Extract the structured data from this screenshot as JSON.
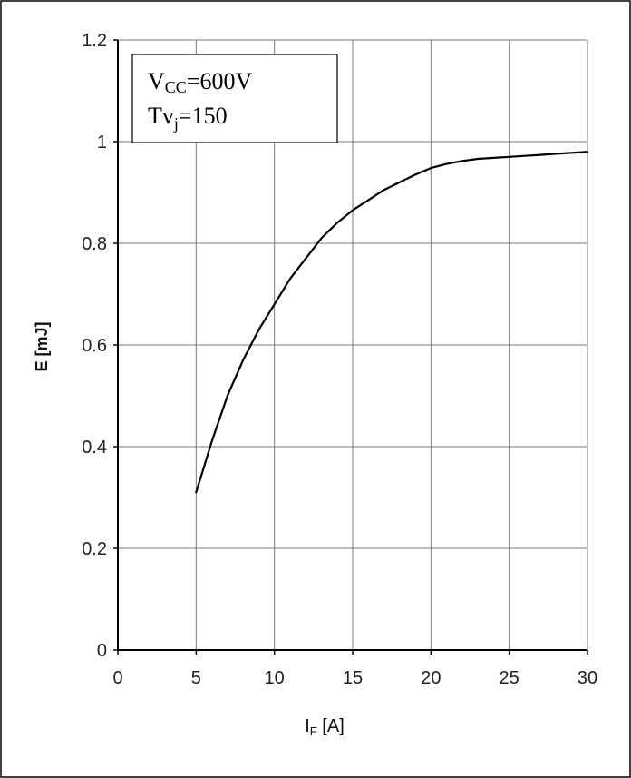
{
  "chart_data": {
    "type": "line",
    "title": "",
    "xlabel": "I",
    "xlabel_sub": "F",
    "xlabel_unit": " [A]",
    "ylabel": "E  [mJ]",
    "xlim": [
      0,
      30
    ],
    "ylim": [
      0,
      1.2
    ],
    "x_ticks": [
      "0",
      "5",
      "10",
      "15",
      "20",
      "25",
      "30"
    ],
    "y_ticks": [
      "0",
      "0.2",
      "0.4",
      "0.6",
      "0.8",
      "1",
      "1.2"
    ],
    "grid": true,
    "legend": "none",
    "annotation": {
      "line1_main": "V",
      "line1_sub": "CC",
      "line1_rest": "=600V",
      "line2_main": "Tv",
      "line2_sub": "j",
      "line2_rest": "=150"
    },
    "series": [
      {
        "color": "#000000",
        "x": [
          5,
          6,
          7,
          8,
          9,
          10,
          11,
          12,
          13,
          14,
          15,
          16,
          17,
          18,
          19,
          20,
          21,
          22,
          23,
          24,
          25,
          26,
          27,
          28,
          29,
          30
        ],
        "y": [
          0.31,
          0.41,
          0.5,
          0.57,
          0.63,
          0.68,
          0.73,
          0.77,
          0.81,
          0.84,
          0.865,
          0.885,
          0.905,
          0.92,
          0.935,
          0.948,
          0.956,
          0.962,
          0.966,
          0.968,
          0.97,
          0.972,
          0.974,
          0.976,
          0.978,
          0.98
        ]
      }
    ]
  }
}
